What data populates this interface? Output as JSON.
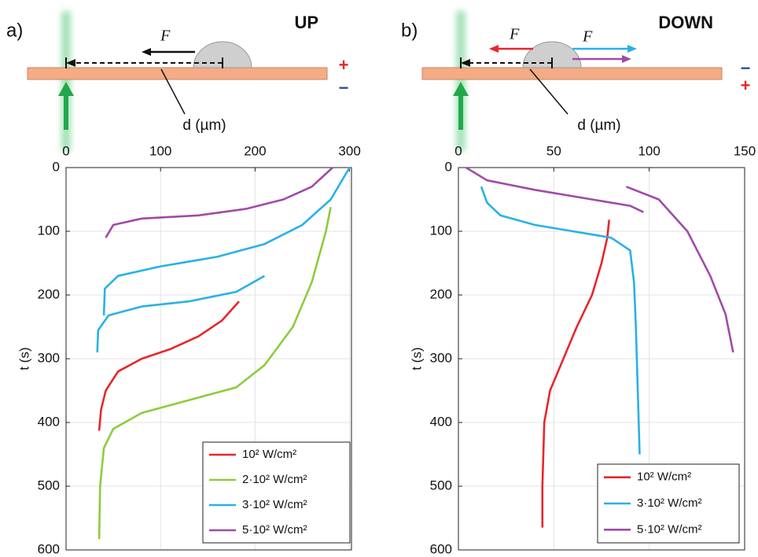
{
  "chart_data": [
    {
      "type": "line",
      "panel_label": "a)",
      "title": "UP",
      "xlabel": "d (µm)",
      "ylabel": "t (s)",
      "annotations": [
        "F⃗",
        "+",
        "−"
      ],
      "xlim": [
        0,
        302
      ],
      "xticks": [
        0,
        100,
        200,
        300
      ],
      "ylim": [
        0,
        600
      ],
      "yticks": [
        0,
        100,
        200,
        300,
        400,
        500,
        600
      ],
      "invert_y": true,
      "grid": true,
      "legend": "lower right",
      "series": [
        {
          "name": "10² W/cm²",
          "color": "#e8262a",
          "x": [
            35,
            37,
            42,
            55,
            80,
            110,
            140,
            165,
            183
          ],
          "values": [
            413,
            380,
            350,
            320,
            300,
            285,
            265,
            240,
            210
          ]
        },
        {
          "name": "2·10² W/cm²",
          "color": "#8ccc3c",
          "x": [
            35,
            36,
            40,
            50,
            80,
            130,
            180,
            210,
            240,
            260,
            275,
            280
          ],
          "values": [
            583,
            500,
            440,
            410,
            385,
            365,
            345,
            310,
            250,
            180,
            100,
            62
          ]
        },
        {
          "name": "3·10² W/cm²",
          "color": "#2ab0e8",
          "x": [
            33,
            34,
            45,
            80,
            130,
            180,
            210,
            null,
            40,
            41,
            55,
            100,
            160,
            210,
            250,
            280,
            300
          ],
          "values": [
            290,
            255,
            232,
            218,
            210,
            195,
            170,
            null,
            232,
            190,
            170,
            155,
            140,
            120,
            90,
            50,
            0
          ]
        },
        {
          "name": "5·10² W/cm²",
          "color": "#a04aa8",
          "x": [
            42,
            50,
            80,
            140,
            190,
            230,
            260,
            282
          ],
          "values": [
            110,
            90,
            80,
            75,
            65,
            50,
            30,
            0
          ]
        }
      ]
    },
    {
      "type": "line",
      "panel_label": "b)",
      "title": "DOWN",
      "xlabel": "d (µm)",
      "ylabel": "t (s)",
      "annotations": [
        "F⃗",
        "F⃗",
        "−",
        "+"
      ],
      "xlim": [
        0,
        150
      ],
      "xticks": [
        0,
        50,
        100,
        150
      ],
      "ylim": [
        0,
        600
      ],
      "yticks": [
        0,
        100,
        200,
        300,
        400,
        500,
        600
      ],
      "invert_y": true,
      "grid": true,
      "legend": "lower right",
      "series": [
        {
          "name": "10² W/cm²",
          "color": "#e8262a",
          "x": [
            44,
            44,
            45,
            48,
            55,
            62,
            70,
            75,
            78,
            79
          ],
          "values": [
            565,
            500,
            400,
            350,
            300,
            250,
            200,
            150,
            110,
            82
          ]
        },
        {
          "name": "3·10² W/cm²",
          "color": "#2ab0e8",
          "x": [
            12,
            15,
            22,
            40,
            60,
            80,
            90,
            92,
            93,
            94,
            95
          ],
          "values": [
            30,
            55,
            75,
            90,
            100,
            110,
            130,
            180,
            250,
            350,
            450
          ]
        },
        {
          "name": "5·10² W/cm²",
          "color": "#a04aa8",
          "x": [
            4,
            15,
            40,
            70,
            90,
            97,
            null,
            88,
            105,
            120,
            132,
            140,
            144
          ],
          "values": [
            0,
            20,
            35,
            50,
            60,
            70,
            null,
            30,
            50,
            100,
            170,
            230,
            290
          ]
        }
      ]
    }
  ]
}
